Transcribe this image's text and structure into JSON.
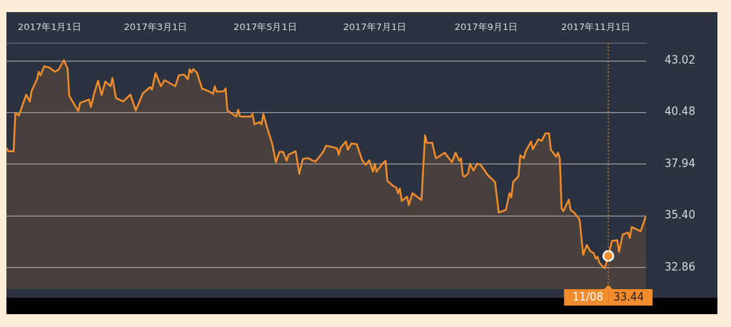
{
  "chart_data": {
    "type": "area",
    "x": [
      "2016-12-08",
      "2016-12-09",
      "2016-12-12",
      "2016-12-13",
      "2016-12-15",
      "2016-12-19",
      "2016-12-21",
      "2016-12-22",
      "2016-12-25",
      "2016-12-26",
      "2016-12-27",
      "2016-12-29",
      "2017-01-01",
      "2017-01-04",
      "2017-01-06",
      "2017-01-09",
      "2017-01-11",
      "2017-01-12",
      "2017-01-15",
      "2017-01-17",
      "2017-01-18",
      "2017-01-23",
      "2017-01-24",
      "2017-01-26",
      "2017-01-28",
      "2017-01-30",
      "2017-02-01",
      "2017-02-04",
      "2017-02-05",
      "2017-02-07",
      "2017-02-11",
      "2017-02-15",
      "2017-02-18",
      "2017-02-22",
      "2017-02-26",
      "2017-02-27",
      "2017-03-01",
      "2017-03-04",
      "2017-03-06",
      "2017-03-12",
      "2017-03-14",
      "2017-03-17",
      "2017-03-19",
      "2017-03-20",
      "2017-03-21",
      "2017-03-22",
      "2017-03-24",
      "2017-03-27",
      "2017-03-28",
      "2017-04-01",
      "2017-04-02",
      "2017-04-03",
      "2017-04-04",
      "2017-04-08",
      "2017-04-09",
      "2017-04-10",
      "2017-04-15",
      "2017-04-16",
      "2017-04-17",
      "2017-04-23",
      "2017-04-24",
      "2017-04-25",
      "2017-04-28",
      "2017-04-29",
      "2017-04-30",
      "2017-05-02",
      "2017-05-05",
      "2017-05-07",
      "2017-05-09",
      "2017-05-11",
      "2017-05-13",
      "2017-05-14",
      "2017-05-18",
      "2017-05-20",
      "2017-05-22",
      "2017-05-25",
      "2017-05-27",
      "2017-05-29",
      "2017-06-02",
      "2017-06-04",
      "2017-06-07",
      "2017-06-10",
      "2017-06-11",
      "2017-06-12",
      "2017-06-15",
      "2017-06-16",
      "2017-06-18",
      "2017-06-21",
      "2017-06-24",
      "2017-06-26",
      "2017-06-28",
      "2017-06-30",
      "2017-07-01",
      "2017-07-02",
      "2017-07-05",
      "2017-07-07",
      "2017-07-08",
      "2017-07-11",
      "2017-07-13",
      "2017-07-14",
      "2017-07-15",
      "2017-07-16",
      "2017-07-19",
      "2017-07-20",
      "2017-07-22",
      "2017-07-24",
      "2017-07-27",
      "2017-07-29",
      "2017-07-30",
      "2017-08-02",
      "2017-08-04",
      "2017-08-05",
      "2017-08-09",
      "2017-08-10",
      "2017-08-13",
      "2017-08-15",
      "2017-08-17",
      "2017-08-18",
      "2017-08-19",
      "2017-08-20",
      "2017-08-22",
      "2017-08-23",
      "2017-08-25",
      "2017-08-27",
      "2017-08-29",
      "2017-09-02",
      "2017-09-06",
      "2017-09-08",
      "2017-09-12",
      "2017-09-14",
      "2017-09-15",
      "2017-09-16",
      "2017-09-19",
      "2017-09-20",
      "2017-09-22",
      "2017-09-23",
      "2017-09-26",
      "2017-09-27",
      "2017-09-30",
      "2017-10-02",
      "2017-10-04",
      "2017-10-06",
      "2017-10-07",
      "2017-10-10",
      "2017-10-11",
      "2017-10-12",
      "2017-10-13",
      "2017-10-14",
      "2017-10-17",
      "2017-10-18",
      "2017-10-20",
      "2017-10-23",
      "2017-10-25",
      "2017-10-27",
      "2017-10-29",
      "2017-10-31",
      "2017-11-01",
      "2017-11-02",
      "2017-11-03",
      "2017-11-06",
      "2017-11-08",
      "2017-11-10",
      "2017-11-13",
      "2017-11-14",
      "2017-11-16",
      "2017-11-19",
      "2017-11-20",
      "2017-11-21",
      "2017-11-26",
      "2017-11-29"
    ],
    "series": [
      {
        "color": "#f28c2c",
        "values": [
          38.75,
          38.58,
          38.58,
          40.45,
          40.34,
          41.36,
          41.02,
          41.53,
          42.11,
          42.48,
          42.31,
          42.75,
          42.68,
          42.48,
          42.58,
          43.05,
          42.65,
          41.29,
          40.85,
          40.55,
          40.95,
          41.12,
          40.75,
          41.46,
          42.04,
          41.33,
          42.0,
          41.77,
          42.17,
          41.19,
          41.02,
          41.36,
          40.58,
          41.43,
          41.73,
          41.6,
          42.41,
          41.77,
          42.07,
          41.77,
          42.31,
          42.34,
          42.11,
          42.61,
          42.44,
          42.61,
          42.44,
          41.63,
          41.63,
          41.46,
          41.39,
          41.77,
          41.5,
          41.53,
          41.67,
          40.58,
          40.28,
          40.62,
          40.28,
          40.28,
          40.41,
          39.9,
          40.01,
          39.9,
          40.41,
          39.77,
          38.92,
          38.04,
          38.55,
          38.55,
          38.11,
          38.41,
          38.58,
          37.47,
          38.21,
          38.24,
          38.14,
          38.07,
          38.51,
          38.85,
          38.79,
          38.72,
          38.41,
          38.75,
          39.06,
          38.65,
          38.96,
          38.92,
          38.14,
          37.91,
          38.14,
          37.57,
          37.97,
          37.57,
          37.94,
          38.11,
          37.13,
          36.89,
          36.79,
          36.52,
          36.75,
          36.14,
          36.35,
          35.94,
          36.52,
          36.38,
          36.18,
          39.36,
          38.99,
          38.99,
          38.24,
          38.28,
          38.51,
          38.38,
          38.04,
          38.51,
          38.11,
          38.24,
          37.4,
          37.33,
          37.5,
          37.97,
          37.63,
          37.97,
          37.91,
          37.4,
          37.06,
          35.57,
          35.7,
          36.52,
          36.31,
          37.06,
          37.36,
          38.38,
          38.24,
          38.58,
          39.06,
          38.68,
          39.16,
          39.09,
          39.46,
          39.46,
          38.65,
          38.31,
          38.51,
          38.21,
          35.77,
          35.64,
          36.21,
          35.7,
          35.57,
          35.23,
          33.5,
          33.98,
          33.67,
          33.57,
          33.3,
          33.4,
          33.1,
          32.83,
          33.44,
          34.18,
          34.21,
          33.64,
          34.49,
          34.59,
          34.32,
          34.86,
          34.65,
          35.42
        ]
      }
    ],
    "xlim": [
      "2016-12-08",
      "2017-11-29"
    ],
    "xticks": [
      {
        "value": "2017-01-01",
        "label": "2017年1月1日"
      },
      {
        "value": "2017-03-01",
        "label": "2017年3月1日"
      },
      {
        "value": "2017-05-01",
        "label": "2017年5月1日"
      },
      {
        "value": "2017-07-01",
        "label": "2017年7月1日"
      },
      {
        "value": "2017-09-01",
        "label": "2017年9月1日"
      },
      {
        "value": "2017-11-01",
        "label": "2017年11月1日"
      }
    ],
    "ylim": [
      31.81,
      43.9
    ],
    "yticks": [
      {
        "value": 32.86,
        "label": "32.86"
      },
      {
        "value": 35.4,
        "label": "35.40"
      },
      {
        "value": 37.94,
        "label": "37.94"
      },
      {
        "value": 40.48,
        "label": "40.48"
      },
      {
        "value": 43.02,
        "label": "43.02"
      }
    ],
    "grid": "y",
    "marker": "none",
    "ref_lines": [
      {
        "axis": "x",
        "value": "2017-11-08",
        "label": "11/08",
        "color": "#f28c2c",
        "line_style": "dotted"
      }
    ],
    "annotations": [
      "33.44"
    ]
  }
}
